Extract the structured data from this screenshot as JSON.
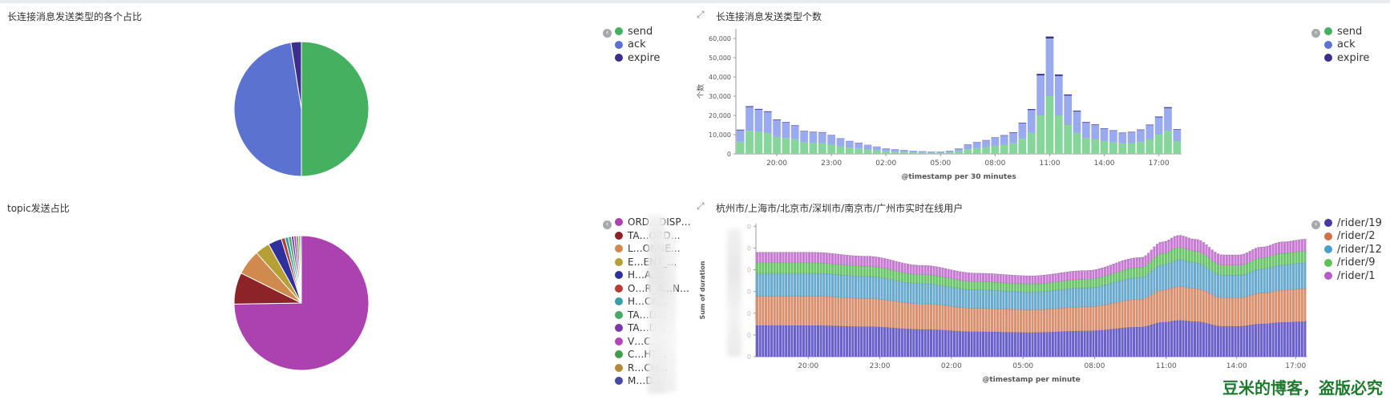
{
  "panels": {
    "pie1": {
      "title": "长连接消息发送类型的各个占比"
    },
    "bar1": {
      "title": "长连接消息发送类型个数"
    },
    "pie2": {
      "title": "topic发送占比"
    },
    "bar2": {
      "title": "杭州市/上海市/北京市/深圳市/南京市/广州市实时在线用户"
    }
  },
  "icons": {
    "legend_toggle": "chevron-toggle-icon",
    "expand": "expand-icon"
  },
  "legends": {
    "types": [
      {
        "label": "send",
        "color": "#45b160"
      },
      {
        "label": "ack",
        "color": "#5b72d1"
      },
      {
        "label": "expire",
        "color": "#3b2e8c"
      }
    ],
    "topics": [
      {
        "label": "ORD…DISP…",
        "color": "#ac42b0"
      },
      {
        "label": "TA…ORD…",
        "color": "#8b2328"
      },
      {
        "label": "L…ONNE…",
        "color": "#d08a4e"
      },
      {
        "label": "E…ENT_…",
        "color": "#b6a036"
      },
      {
        "label": "H…A…",
        "color": "#30309c"
      },
      {
        "label": "O…R_A…N…",
        "color": "#b73a35"
      },
      {
        "label": "H…CK…",
        "color": "#3a9ea6"
      },
      {
        "label": "TA…D…",
        "color": "#47a964"
      },
      {
        "label": "TA…D…",
        "color": "#7c37a8"
      },
      {
        "label": "V…C…",
        "color": "#b546b8"
      },
      {
        "label": "C…HT…",
        "color": "#3e9e4c"
      },
      {
        "label": "R…CH…",
        "color": "#b18a3a"
      },
      {
        "label": "M…D…",
        "color": "#4649a6"
      }
    ],
    "riders": [
      {
        "label": "/rider/19",
        "color": "#4637a6"
      },
      {
        "label": "/rider/2",
        "color": "#d0704a"
      },
      {
        "label": "/rider/12",
        "color": "#4a9ec6"
      },
      {
        "label": "/rider/9",
        "color": "#5dc158"
      },
      {
        "label": "/rider/1",
        "color": "#b65cc8"
      }
    ]
  },
  "watermark": "豆米的博客，盗版必究",
  "chart_data": [
    {
      "type": "pie",
      "title": "长连接消息发送类型的各个占比",
      "labels": [
        "send",
        "ack",
        "expire"
      ],
      "values": [
        50,
        47.5,
        2.5
      ],
      "colors": [
        "#45b160",
        "#5b72d1",
        "#3b2e8c"
      ]
    },
    {
      "type": "bar",
      "stacked": true,
      "title": "长连接消息发送类型个数",
      "xlabel": "@timestamp per 30 minutes",
      "ylabel": "个数",
      "ylim": [
        0,
        65000
      ],
      "yticks": [
        0,
        10000,
        20000,
        30000,
        40000,
        50000,
        60000
      ],
      "ytick_labels": [
        "0",
        "10,000",
        "20,000",
        "30,000",
        "40,000",
        "50,000",
        "60,000"
      ],
      "xtick_labels": [
        "20:00",
        "23:00",
        "02:00",
        "05:00",
        "08:00",
        "11:00",
        "14:00",
        "17:00"
      ],
      "xtick_index": [
        4,
        10,
        16,
        22,
        28,
        34,
        40,
        46
      ],
      "series": [
        {
          "name": "send",
          "color": "#86d59a",
          "values": [
            6300,
            12000,
            11500,
            10800,
            8800,
            8200,
            7600,
            6000,
            5700,
            5500,
            4800,
            4000,
            3200,
            2800,
            2300,
            1800,
            1400,
            1200,
            1000,
            800,
            700,
            600,
            600,
            800,
            1400,
            2400,
            3000,
            3500,
            4200,
            4800,
            5500,
            7800,
            11000,
            20000,
            30000,
            20000,
            15000,
            11000,
            8200,
            7500,
            6500,
            6000,
            5500,
            5600,
            6200,
            7500,
            10000,
            12000,
            6500
          ]
        },
        {
          "name": "ack",
          "color": "#9aaaee",
          "values": [
            6000,
            12400,
            11500,
            11000,
            8800,
            8000,
            7000,
            5700,
            5600,
            5600,
            4800,
            3900,
            3400,
            2900,
            2300,
            1900,
            1400,
            1200,
            1000,
            800,
            700,
            600,
            600,
            800,
            1400,
            2400,
            3000,
            3500,
            4200,
            4700,
            5500,
            8000,
            11800,
            20800,
            30000,
            20500,
            15300,
            11000,
            8000,
            7500,
            6500,
            6000,
            5300,
            5600,
            6200,
            7400,
            9000,
            11800,
            6000
          ]
        },
        {
          "name": "expire",
          "color": "#3b2e8c",
          "values": [
            300,
            400,
            400,
            350,
            300,
            300,
            250,
            220,
            200,
            200,
            180,
            160,
            140,
            120,
            100,
            90,
            80,
            70,
            60,
            50,
            50,
            40,
            40,
            50,
            80,
            120,
            150,
            170,
            200,
            230,
            260,
            350,
            500,
            800,
            1000,
            800,
            600,
            450,
            350,
            300,
            280,
            260,
            240,
            250,
            270,
            300,
            400,
            500,
            300
          ]
        }
      ]
    },
    {
      "type": "pie",
      "title": "topic发送占比",
      "labels": [
        "ORD…DISP…",
        "TA…ORD…",
        "L…ONNE…",
        "E…ENT_…",
        "H…A…",
        "O…R_A…N…",
        "H…CK…",
        "TA…D…",
        "TA…D…",
        "V…C…",
        "C…HT…",
        "R…CH…",
        "M…D…"
      ],
      "values": [
        74,
        7.5,
        6,
        3.5,
        3.2,
        0.9,
        0.8,
        0.7,
        0.6,
        0.6,
        0.5,
        0.4,
        0.3
      ],
      "colors": [
        "#ac42b0",
        "#8b2328",
        "#d08a4e",
        "#b6a036",
        "#30309c",
        "#b73a35",
        "#3a9ea6",
        "#47a964",
        "#7c37a8",
        "#b546b8",
        "#3e9e4c",
        "#b18a3a",
        "#4649a6"
      ]
    },
    {
      "type": "bar",
      "stacked": true,
      "title": "杭州市/上海市/北京市/深圳市/南京市/广州市实时在线用户",
      "xlabel": "@timestamp per minute",
      "ylabel": "Sum of duration",
      "ylim": [
        0,
        1.02
      ],
      "yticks": [
        0,
        0.167,
        0.333,
        0.5,
        0.667,
        0.833,
        1.0
      ],
      "xtick_labels": [
        "20:00",
        "23:00",
        "02:00",
        "05:00",
        "08:00",
        "11:00",
        "14:00",
        "17:00"
      ],
      "xtick_fracs": [
        0.095,
        0.225,
        0.355,
        0.485,
        0.615,
        0.745,
        0.873,
        0.98
      ],
      "n_bars": 190,
      "profile": {
        "x": [
          0,
          0.05,
          0.1,
          0.2,
          0.3,
          0.4,
          0.5,
          0.6,
          0.7,
          0.74,
          0.77,
          0.8,
          0.85,
          0.88,
          0.92,
          0.96,
          1.0
        ],
        "total": [
          0.8,
          0.8,
          0.8,
          0.77,
          0.7,
          0.64,
          0.62,
          0.66,
          0.76,
          0.88,
          0.93,
          0.9,
          0.78,
          0.78,
          0.84,
          0.88,
          0.9
        ]
      },
      "series": [
        {
          "name": "/rider/19",
          "color": "#6a60cc",
          "share": 0.3
        },
        {
          "name": "/rider/2",
          "color": "#d8906e",
          "share": 0.28
        },
        {
          "name": "/rider/12",
          "color": "#68aace",
          "share": 0.22
        },
        {
          "name": "/rider/9",
          "color": "#6bc56b",
          "share": 0.1
        },
        {
          "name": "/rider/1",
          "color": "#c67ad2",
          "share": 0.1
        }
      ]
    }
  ]
}
